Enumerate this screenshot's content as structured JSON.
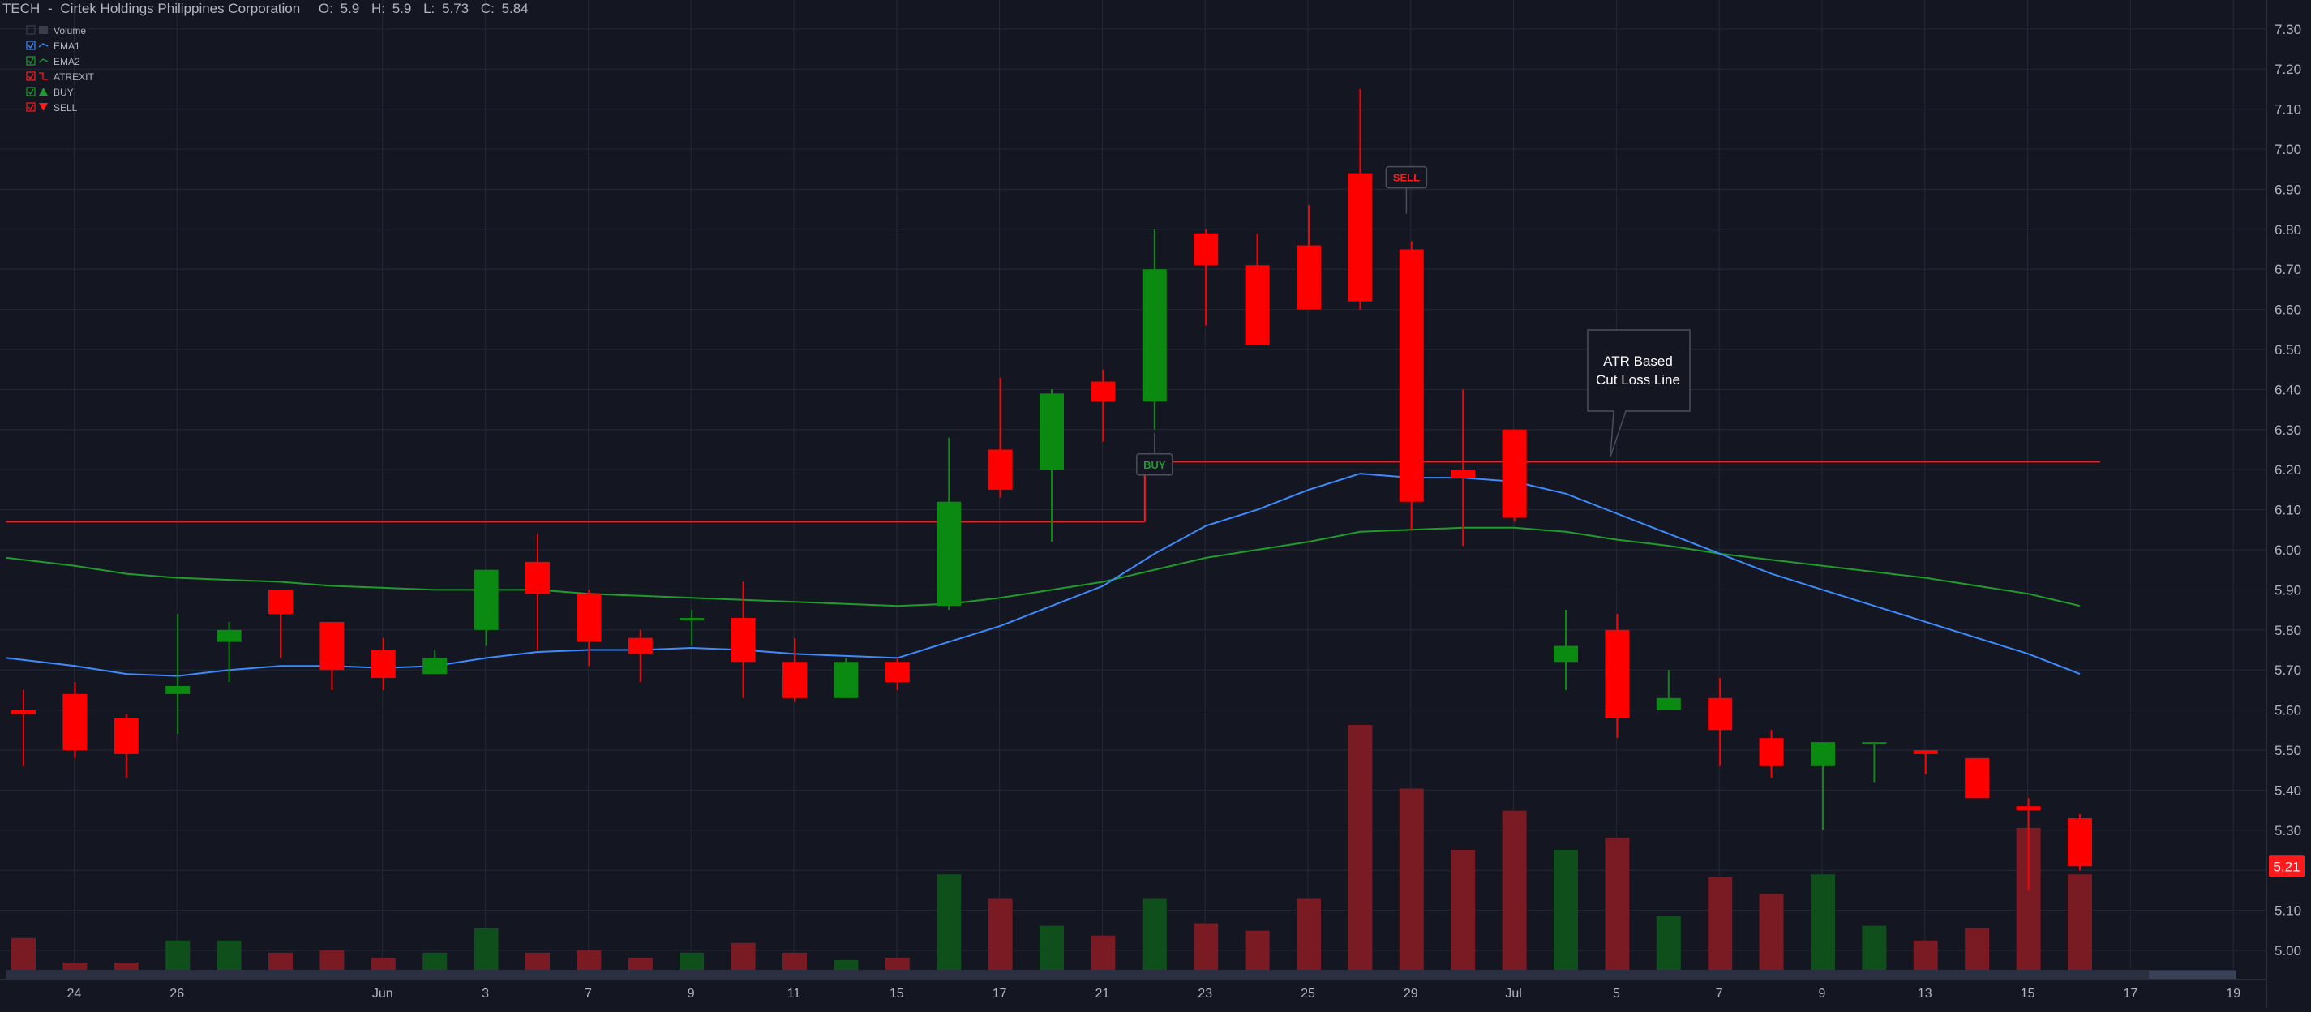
{
  "header": {
    "symbol": "TECH",
    "separator": "-",
    "name": "Cirtek Holdings Philippines Corporation",
    "ohlc": [
      {
        "label": "O:",
        "value": "5.9"
      },
      {
        "label": "H:",
        "value": "5.9"
      },
      {
        "label": "L:",
        "value": "5.73"
      },
      {
        "label": "C:",
        "value": "5.84"
      }
    ]
  },
  "legend": [
    {
      "key": "volume",
      "label": "Volume",
      "checked": false,
      "color": "#5d606b"
    },
    {
      "key": "ema1",
      "label": "EMA1",
      "checked": true,
      "color": "#3d8bfd"
    },
    {
      "key": "ema2",
      "label": "EMA2",
      "checked": true,
      "color": "#1f9c2c"
    },
    {
      "key": "atrexit",
      "label": "ATREXIT",
      "checked": true,
      "color": "#ff1b1b"
    },
    {
      "key": "buy",
      "label": "BUY",
      "checked": true,
      "color": "#1f9c2c"
    },
    {
      "key": "sell",
      "label": "SELL",
      "checked": true,
      "color": "#ff1b1b"
    }
  ],
  "annotation": {
    "line1": "ATR Based",
    "line2": "Cut Loss Line"
  },
  "markers": {
    "buy": "BUY",
    "sell": "SELL"
  },
  "last_price_label": "5.21",
  "colors": {
    "up": "#0b8a11",
    "down": "#ff0000",
    "vol_up": "#0f4f1c",
    "vol_down": "#7a1a22",
    "ema1": "#3d8bfd",
    "ema2": "#1f9c2c",
    "atr": "#ff1b1b",
    "background": "#141722",
    "grid": "#232838"
  },
  "chart_data": {
    "type": "candlestick",
    "symbol": "TECH",
    "ylim": [
      4.95,
      7.34
    ],
    "y_ticks": [
      "5.00",
      "5.10",
      "5.20",
      "5.30",
      "5.40",
      "5.50",
      "5.60",
      "5.70",
      "5.80",
      "5.90",
      "6.00",
      "6.10",
      "6.20",
      "6.30",
      "6.40",
      "6.50",
      "6.60",
      "6.70",
      "6.80",
      "6.90",
      "7.00",
      "7.10",
      "7.20",
      "7.30"
    ],
    "x_ticks": [
      {
        "label": "24",
        "i": 1
      },
      {
        "label": "26",
        "i": 3
      },
      {
        "label": "Jun",
        "i": 7
      },
      {
        "label": "3",
        "i": 9
      },
      {
        "label": "7",
        "i": 11
      },
      {
        "label": "9",
        "i": 13
      },
      {
        "label": "11",
        "i": 15
      },
      {
        "label": "15",
        "i": 17
      },
      {
        "label": "17",
        "i": 19
      },
      {
        "label": "21",
        "i": 21
      },
      {
        "label": "23",
        "i": 23
      },
      {
        "label": "25",
        "i": 25
      },
      {
        "label": "29",
        "i": 27
      },
      {
        "label": "Jul",
        "i": 29
      },
      {
        "label": "5",
        "i": 31
      },
      {
        "label": "7",
        "i": 33
      },
      {
        "label": "9",
        "i": 35
      },
      {
        "label": "13",
        "i": 37
      },
      {
        "label": "15",
        "i": 39
      },
      {
        "label": "17",
        "i": 41
      },
      {
        "label": "19",
        "i": 43
      }
    ],
    "candles": [
      {
        "o": 5.6,
        "h": 5.65,
        "l": 5.46,
        "c": 5.59
      },
      {
        "o": 5.64,
        "h": 5.67,
        "l": 5.48,
        "c": 5.5
      },
      {
        "o": 5.58,
        "h": 5.59,
        "l": 5.43,
        "c": 5.49
      },
      {
        "o": 5.64,
        "h": 5.84,
        "l": 5.54,
        "c": 5.66
      },
      {
        "o": 5.77,
        "h": 5.82,
        "l": 5.67,
        "c": 5.8
      },
      {
        "o": 5.9,
        "h": 5.9,
        "l": 5.73,
        "c": 5.84
      },
      {
        "o": 5.82,
        "h": 5.82,
        "l": 5.65,
        "c": 5.7
      },
      {
        "o": 5.75,
        "h": 5.78,
        "l": 5.65,
        "c": 5.68
      },
      {
        "o": 5.69,
        "h": 5.75,
        "l": 5.69,
        "c": 5.73
      },
      {
        "o": 5.8,
        "h": 5.95,
        "l": 5.76,
        "c": 5.95
      },
      {
        "o": 5.97,
        "h": 6.04,
        "l": 5.75,
        "c": 5.89
      },
      {
        "o": 5.89,
        "h": 5.9,
        "l": 5.71,
        "c": 5.77
      },
      {
        "o": 5.78,
        "h": 5.8,
        "l": 5.67,
        "c": 5.74
      },
      {
        "o": 5.83,
        "h": 5.85,
        "l": 5.76,
        "c": 5.83
      },
      {
        "o": 5.83,
        "h": 5.92,
        "l": 5.63,
        "c": 5.72
      },
      {
        "o": 5.72,
        "h": 5.78,
        "l": 5.62,
        "c": 5.63
      },
      {
        "o": 5.63,
        "h": 5.73,
        "l": 5.63,
        "c": 5.72
      },
      {
        "o": 5.72,
        "h": 5.73,
        "l": 5.65,
        "c": 5.67
      },
      {
        "o": 5.86,
        "h": 6.28,
        "l": 5.85,
        "c": 6.12
      },
      {
        "o": 6.25,
        "h": 6.43,
        "l": 6.13,
        "c": 6.15
      },
      {
        "o": 6.2,
        "h": 6.4,
        "l": 6.02,
        "c": 6.39
      },
      {
        "o": 6.42,
        "h": 6.45,
        "l": 6.27,
        "c": 6.37
      },
      {
        "o": 6.37,
        "h": 6.8,
        "l": 6.3,
        "c": 6.7
      },
      {
        "o": 6.79,
        "h": 6.8,
        "l": 6.56,
        "c": 6.71
      },
      {
        "o": 6.71,
        "h": 6.79,
        "l": 6.51,
        "c": 6.51
      },
      {
        "o": 6.76,
        "h": 6.86,
        "l": 6.6,
        "c": 6.6
      },
      {
        "o": 6.94,
        "h": 7.15,
        "l": 6.6,
        "c": 6.62
      },
      {
        "o": 6.75,
        "h": 6.77,
        "l": 6.05,
        "c": 6.12
      },
      {
        "o": 6.2,
        "h": 6.4,
        "l": 6.01,
        "c": 6.18
      },
      {
        "o": 6.3,
        "h": 6.3,
        "l": 6.07,
        "c": 6.08
      },
      {
        "o": 5.72,
        "h": 5.85,
        "l": 5.65,
        "c": 5.76
      },
      {
        "o": 5.8,
        "h": 5.84,
        "l": 5.53,
        "c": 5.58
      },
      {
        "o": 5.6,
        "h": 5.7,
        "l": 5.6,
        "c": 5.63
      },
      {
        "o": 5.63,
        "h": 5.68,
        "l": 5.46,
        "c": 5.55
      },
      {
        "o": 5.53,
        "h": 5.55,
        "l": 5.43,
        "c": 5.46
      },
      {
        "o": 5.46,
        "h": 5.52,
        "l": 5.3,
        "c": 5.52
      },
      {
        "o": 5.52,
        "h": 5.52,
        "l": 5.42,
        "c": 5.52
      },
      {
        "o": 5.5,
        "h": 5.5,
        "l": 5.44,
        "c": 5.49
      },
      {
        "o": 5.48,
        "h": 5.48,
        "l": 5.38,
        "c": 5.38
      },
      {
        "o": 5.36,
        "h": 5.38,
        "l": 5.15,
        "c": 5.35
      },
      {
        "o": 5.33,
        "h": 5.34,
        "l": 5.2,
        "c": 5.21
      }
    ],
    "volume": [
      0.13,
      0.03,
      0.03,
      0.12,
      0.12,
      0.07,
      0.08,
      0.05,
      0.07,
      0.17,
      0.07,
      0.08,
      0.05,
      0.07,
      0.11,
      0.07,
      0.04,
      0.05,
      0.39,
      0.29,
      0.18,
      0.14,
      0.29,
      0.19,
      0.16,
      0.29,
      1.0,
      0.74,
      0.49,
      0.65,
      0.49,
      0.54,
      0.22,
      0.38,
      0.31,
      0.39,
      0.18,
      0.12,
      0.17,
      0.58,
      0.39
    ],
    "ema1": [
      5.73,
      5.71,
      5.69,
      5.685,
      5.7,
      5.71,
      5.71,
      5.705,
      5.71,
      5.73,
      5.745,
      5.75,
      5.75,
      5.755,
      5.75,
      5.74,
      5.735,
      5.73,
      5.77,
      5.81,
      5.86,
      5.91,
      5.99,
      6.06,
      6.1,
      6.15,
      6.19,
      6.18,
      6.18,
      6.17,
      6.14,
      6.09,
      6.04,
      5.99,
      5.94,
      5.9,
      5.86,
      5.82,
      5.78,
      5.74,
      5.69
    ],
    "ema2": [
      5.98,
      5.96,
      5.94,
      5.93,
      5.925,
      5.92,
      5.91,
      5.905,
      5.9,
      5.9,
      5.9,
      5.89,
      5.885,
      5.88,
      5.875,
      5.87,
      5.865,
      5.86,
      5.865,
      5.88,
      5.9,
      5.92,
      5.95,
      5.98,
      6.0,
      6.02,
      6.045,
      6.05,
      6.055,
      6.055,
      6.045,
      6.025,
      6.01,
      5.99,
      5.975,
      5.96,
      5.945,
      5.93,
      5.91,
      5.89,
      5.86
    ],
    "atr_exit_levels": [
      {
        "value": 6.07,
        "from_i": 0,
        "to_i": 22
      },
      {
        "value": 6.22,
        "from_i": 22,
        "to_i": 40
      }
    ],
    "signals": [
      {
        "type": "buy",
        "i": 22
      },
      {
        "type": "sell",
        "i": 27
      }
    ]
  }
}
